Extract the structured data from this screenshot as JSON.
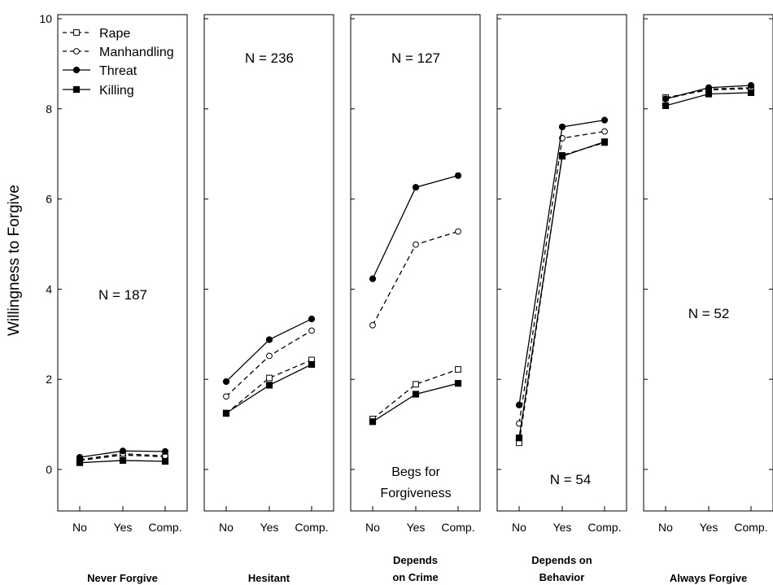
{
  "chart_data": {
    "type": "line",
    "ylabel": "Willingness to Forgive",
    "ylim": [
      -1,
      10
    ],
    "yticks": [
      0,
      2,
      4,
      6,
      8,
      10
    ],
    "categories": [
      "No",
      "Yes",
      "Comp."
    ],
    "legend": {
      "placement": "top-left",
      "entries": [
        {
          "name": "Rape",
          "marker": "open-square",
          "dash": true
        },
        {
          "name": "Manhandling",
          "marker": "open-circle",
          "dash": true
        },
        {
          "name": "Threat",
          "marker": "filled-circle",
          "dash": false
        },
        {
          "name": "Killing",
          "marker": "filled-square",
          "dash": false
        }
      ]
    },
    "annotation": [
      "Begs for",
      "Forgiveness"
    ],
    "panels": [
      {
        "title": [
          "Never Forgive"
        ],
        "n_label": "N = 187",
        "series": [
          {
            "name": "Rape",
            "values": [
              0.2,
              0.32,
              0.28
            ]
          },
          {
            "name": "Manhandling",
            "values": [
              0.22,
              0.35,
              0.3
            ]
          },
          {
            "name": "Threat",
            "values": [
              0.27,
              0.41,
              0.4
            ]
          },
          {
            "name": "Killing",
            "values": [
              0.15,
              0.2,
              0.18
            ]
          }
        ]
      },
      {
        "title": [
          "Hesitant"
        ],
        "n_label": "N = 236",
        "series": [
          {
            "name": "Rape",
            "values": [
              1.24,
              2.03,
              2.43
            ]
          },
          {
            "name": "Manhandling",
            "values": [
              1.62,
              2.52,
              3.08
            ]
          },
          {
            "name": "Threat",
            "values": [
              1.95,
              2.88,
              3.34
            ]
          },
          {
            "name": "Killing",
            "values": [
              1.25,
              1.87,
              2.33
            ]
          }
        ]
      },
      {
        "title": [
          "Depends",
          "on Crime"
        ],
        "n_label": "N = 127",
        "series": [
          {
            "name": "Rape",
            "values": [
              1.12,
              1.89,
              2.22
            ]
          },
          {
            "name": "Manhandling",
            "values": [
              3.2,
              4.99,
              5.28
            ]
          },
          {
            "name": "Threat",
            "values": [
              4.23,
              6.26,
              6.52
            ]
          },
          {
            "name": "Killing",
            "values": [
              1.06,
              1.67,
              1.91
            ]
          }
        ]
      },
      {
        "title": [
          "Depends on",
          "Behavior"
        ],
        "n_label": "N = 54",
        "series": [
          {
            "name": "Rape",
            "values": [
              0.59,
              6.97,
              7.25
            ]
          },
          {
            "name": "Manhandling",
            "values": [
              1.02,
              7.35,
              7.5
            ]
          },
          {
            "name": "Threat",
            "values": [
              1.43,
              7.6,
              7.75
            ]
          },
          {
            "name": "Killing",
            "values": [
              0.7,
              6.95,
              7.27
            ]
          }
        ]
      },
      {
        "title": [
          "Always Forgive"
        ],
        "n_label": "N = 52",
        "series": [
          {
            "name": "Rape",
            "values": [
              8.25,
              8.42,
              8.45
            ]
          },
          {
            "name": "Manhandling",
            "values": [
              8.22,
              8.44,
              8.47
            ]
          },
          {
            "name": "Threat",
            "values": [
              8.22,
              8.47,
              8.52
            ]
          },
          {
            "name": "Killing",
            "values": [
              8.07,
              8.33,
              8.36
            ]
          }
        ]
      }
    ]
  }
}
